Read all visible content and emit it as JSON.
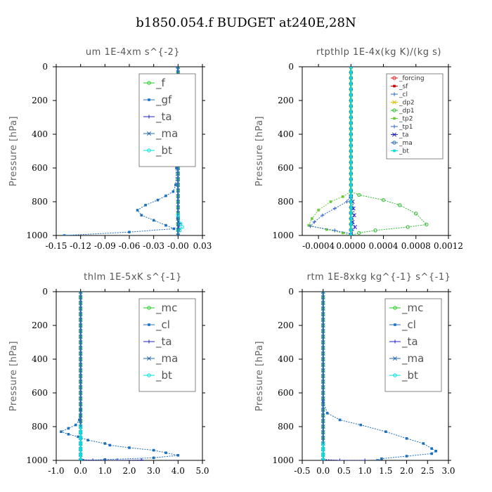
{
  "title": "b1850.054.f  BUDGET at240E,28N",
  "colors": {
    "_f": "#22cc22",
    "_gf": "#1f6fbf",
    "_ta": "#2222cc",
    "_ma": "#2a6aaa",
    "_bt": "#00e0e0",
    "_mc": "#22cc22",
    "_cl": "#1f6fbf",
    "_forcing": "#e02020",
    "_sf": "#cc0000",
    "_dp2": "#e0c000",
    "_dp1": "#33bb33",
    "_tp2": "#66cc33",
    "_tp1": "#3366cc"
  },
  "chart_data": [
    {
      "type": "line",
      "title": "um   1E-4xm s^{-2}",
      "ylabel": "Pressure [hPa]",
      "xlim": [
        -0.15,
        0.03
      ],
      "ylim": [
        1000,
        0
      ],
      "xticks": [
        "-0.15",
        "-0.12",
        "-0.09",
        "-0.06",
        "-0.03",
        "-0.00",
        "0.03"
      ],
      "xtick_values": [
        -0.15,
        -0.12,
        -0.09,
        -0.06,
        -0.03,
        0.0,
        0.03
      ],
      "yticks": [
        "0",
        "200",
        "400",
        "600",
        "800",
        "1000"
      ],
      "ytick_values": [
        0,
        200,
        400,
        600,
        800,
        1000
      ],
      "legend_position": "top-right",
      "legend_size": "large",
      "series": [
        {
          "name": "_f",
          "points": [
            [
              0,
              0
            ],
            [
              0,
              50
            ],
            [
              0,
              100
            ],
            [
              0,
              150
            ],
            [
              0,
              200
            ],
            [
              0,
              250
            ],
            [
              0,
              300
            ],
            [
              0,
              350
            ],
            [
              0,
              400
            ],
            [
              0,
              450
            ],
            [
              0,
              500
            ],
            [
              0,
              550
            ],
            [
              0,
              600
            ],
            [
              0,
              650
            ],
            [
              0,
              700
            ],
            [
              0,
              750
            ],
            [
              0,
              800
            ],
            [
              0,
              850
            ],
            [
              0,
              900
            ],
            [
              0,
              950
            ],
            [
              0,
              1000
            ]
          ]
        },
        {
          "name": "_gf",
          "points": [
            [
              -0.001,
              0
            ],
            [
              -0.001,
              100
            ],
            [
              -0.002,
              180
            ],
            [
              -0.008,
              210
            ],
            [
              -0.004,
              240
            ],
            [
              0.001,
              270
            ],
            [
              0.004,
              300
            ],
            [
              0.002,
              350
            ],
            [
              0.0,
              400
            ],
            [
              -0.001,
              500
            ],
            [
              -0.002,
              600
            ],
            [
              -0.003,
              700
            ],
            [
              -0.006,
              740
            ],
            [
              -0.015,
              765
            ],
            [
              -0.025,
              790
            ],
            [
              -0.04,
              820
            ],
            [
              -0.05,
              850
            ],
            [
              -0.045,
              880
            ],
            [
              -0.03,
              910
            ],
            [
              -0.015,
              940
            ],
            [
              -0.005,
              960
            ],
            [
              -0.06,
              980
            ],
            [
              -0.14,
              1000
            ]
          ]
        },
        {
          "name": "_ta",
          "points": [
            [
              0.0,
              900
            ],
            [
              0.002,
              930
            ],
            [
              0.001,
              960
            ],
            [
              0.0,
              1000
            ]
          ]
        },
        {
          "name": "_ma",
          "points": [
            [
              0,
              0
            ],
            [
              0,
              1000
            ]
          ]
        },
        {
          "name": "_bt",
          "points": [
            [
              0.0,
              880
            ],
            [
              0.003,
              930
            ],
            [
              0.005,
              950
            ],
            [
              0.002,
              970
            ]
          ]
        }
      ]
    },
    {
      "type": "line",
      "title": "rtpthlp   1E-4x(kg K)/(kg s)",
      "ylabel": "Pressure [hPa]",
      "xlim": [
        -0.0006,
        0.0012
      ],
      "ylim": [
        1000,
        0
      ],
      "xticks": [
        "-0.0004",
        "0.0000",
        "0.0004",
        "0.0008",
        "0.0012"
      ],
      "xtick_values": [
        -0.0004,
        0.0,
        0.0004,
        0.0008,
        0.0012
      ],
      "yticks": [
        "0",
        "200",
        "400",
        "600",
        "800",
        "1000"
      ],
      "ytick_values": [
        0,
        200,
        400,
        600,
        800,
        1000
      ],
      "legend_position": "top-right",
      "legend_size": "small",
      "series": [
        {
          "name": "_forcing",
          "points": [
            [
              0,
              0
            ],
            [
              0,
              1000
            ]
          ]
        },
        {
          "name": "_sf",
          "points": [
            [
              0,
              0
            ],
            [
              0,
              1000
            ]
          ]
        },
        {
          "name": "_cl",
          "points": [
            [
              0,
              0
            ],
            [
              0,
              1000
            ]
          ]
        },
        {
          "name": "_dp2",
          "points": [
            [
              0,
              0
            ],
            [
              0,
              1000
            ]
          ]
        },
        {
          "name": "_dp1",
          "points": [
            [
              0,
              0
            ],
            [
              0,
              740
            ],
            [
              0.0001,
              760
            ],
            [
              0.0004,
              790
            ],
            [
              0.0006,
              820
            ],
            [
              0.0008,
              870
            ],
            [
              0.00093,
              935
            ],
            [
              0.0007,
              950
            ],
            [
              0.0003,
              970
            ],
            [
              0.0001,
              985
            ],
            [
              0,
              1000
            ]
          ]
        },
        {
          "name": "_tp2",
          "points": [
            [
              0,
              0
            ],
            [
              0,
              740
            ],
            [
              -0.0001,
              770
            ],
            [
              -0.00025,
              800
            ],
            [
              -0.0004,
              850
            ],
            [
              -0.00048,
              900
            ],
            [
              -0.00052,
              940
            ],
            [
              -0.0003,
              965
            ],
            [
              -0.0001,
              985
            ],
            [
              0,
              1000
            ]
          ]
        },
        {
          "name": "_tp1",
          "points": [
            [
              0,
              760
            ],
            [
              -5e-05,
              800
            ],
            [
              -0.0002,
              840
            ],
            [
              -0.00035,
              880
            ],
            [
              -0.00045,
              920
            ],
            [
              -0.0005,
              945
            ],
            [
              -0.0002,
              970
            ],
            [
              0,
              990
            ]
          ]
        },
        {
          "name": "_ta",
          "points": [
            [
              0,
              770
            ],
            [
              2e-05,
              800
            ],
            [
              3e-05,
              840
            ],
            [
              4e-05,
              880
            ],
            [
              2e-05,
              920
            ],
            [
              5e-05,
              950
            ],
            [
              0,
              1000
            ]
          ]
        },
        {
          "name": "_ma",
          "points": [
            [
              0,
              0
            ],
            [
              0,
              1000
            ]
          ]
        },
        {
          "name": "_bt",
          "points": [
            [
              0,
              0
            ],
            [
              0,
              1000
            ]
          ]
        }
      ]
    },
    {
      "type": "line",
      "title": "thlm   1E-5xK s^{-1}",
      "ylabel": "Pressure [hPa]",
      "xlim": [
        -1.0,
        5.0
      ],
      "ylim": [
        1000,
        0
      ],
      "xticks": [
        "-1.0",
        "0.0",
        "1.0",
        "2.0",
        "3.0",
        "4.0",
        "5.0"
      ],
      "xtick_values": [
        -1.0,
        0.0,
        1.0,
        2.0,
        3.0,
        4.0,
        5.0
      ],
      "yticks": [
        "0",
        "200",
        "400",
        "600",
        "800",
        "1000"
      ],
      "ytick_values": [
        0,
        200,
        400,
        600,
        800,
        1000
      ],
      "legend_position": "top-right",
      "legend_size": "large",
      "series": [
        {
          "name": "_mc",
          "points": [
            [
              0,
              0
            ],
            [
              0,
              1000
            ]
          ]
        },
        {
          "name": "_cl",
          "points": [
            [
              0,
              0
            ],
            [
              0,
              700
            ],
            [
              -0.05,
              760
            ],
            [
              -0.2,
              790
            ],
            [
              -0.5,
              810
            ],
            [
              -0.8,
              830
            ],
            [
              -0.5,
              845
            ],
            [
              -0.1,
              860
            ],
            [
              0.3,
              880
            ],
            [
              1.0,
              900
            ],
            [
              1.2,
              910
            ],
            [
              2.0,
              925
            ],
            [
              3.0,
              940
            ],
            [
              3.5,
              955
            ],
            [
              4.0,
              970
            ],
            [
              3.0,
              985
            ],
            [
              1.0,
              995
            ],
            [
              0.1,
              1000
            ]
          ]
        },
        {
          "name": "_ta",
          "points": [
            [
              0,
              995
            ],
            [
              0.5,
              1000
            ],
            [
              1.5,
              1000
            ],
            [
              2.5,
              998
            ]
          ]
        },
        {
          "name": "_ma",
          "points": [
            [
              0,
              0
            ],
            [
              0,
              1000
            ]
          ]
        },
        {
          "name": "_bt",
          "points": [
            [
              0,
              800
            ],
            [
              0,
              1000
            ]
          ]
        }
      ]
    },
    {
      "type": "line",
      "title": "rtm   1E-8xkg kg^{-1} s^{-1}",
      "ylabel": "Pressure [hPa]",
      "xlim": [
        -0.5,
        3.0
      ],
      "ylim": [
        1000,
        0
      ],
      "xticks": [
        "-0.5",
        "0.0",
        "0.5",
        "1.0",
        "1.5",
        "2.0",
        "2.5",
        "3.0"
      ],
      "xtick_values": [
        -0.5,
        0.0,
        0.5,
        1.0,
        1.5,
        2.0,
        2.5,
        3.0
      ],
      "yticks": [
        "0",
        "200",
        "400",
        "600",
        "800",
        "1000"
      ],
      "ytick_values": [
        0,
        200,
        400,
        600,
        800,
        1000
      ],
      "legend_position": "top-right",
      "legend_size": "large",
      "series": [
        {
          "name": "_mc",
          "points": [
            [
              0,
              0
            ],
            [
              0,
              1000
            ]
          ]
        },
        {
          "name": "_cl",
          "points": [
            [
              0,
              0
            ],
            [
              0,
              650
            ],
            [
              0.1,
              720
            ],
            [
              0.4,
              760
            ],
            [
              0.9,
              790
            ],
            [
              1.5,
              830
            ],
            [
              2.0,
              870
            ],
            [
              2.4,
              900
            ],
            [
              2.6,
              930
            ],
            [
              2.7,
              945
            ],
            [
              2.6,
              960
            ],
            [
              2.0,
              975
            ],
            [
              1.4,
              990
            ],
            [
              1.3,
              1000
            ]
          ]
        },
        {
          "name": "_ta",
          "points": [
            [
              0,
              995
            ],
            [
              0.4,
              1000
            ],
            [
              1.0,
              1000
            ]
          ]
        },
        {
          "name": "_ma",
          "points": [
            [
              0,
              0
            ],
            [
              0,
              1000
            ]
          ]
        },
        {
          "name": "_bt",
          "points": [
            [
              0,
              900
            ],
            [
              0,
              1000
            ]
          ]
        }
      ]
    }
  ]
}
